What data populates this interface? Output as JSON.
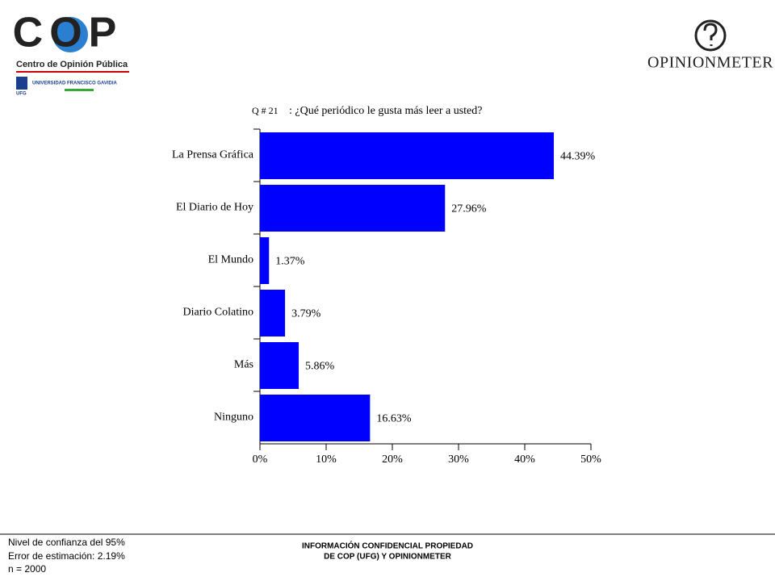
{
  "header": {
    "logo_left": "COP",
    "logo_left_caption": "Centro de Opinión Pública",
    "university": "UNIVERSIDAD FRANCISCO GAVIDIA",
    "university_short": "UFG",
    "logo_right": "OPINIONMETER"
  },
  "chart_data": {
    "type": "bar",
    "orientation": "horizontal",
    "question_number": "Q # 21",
    "title": ": ¿Qué periódico le gusta más leer a usted?",
    "categories": [
      "La Prensa Gráfica",
      "El Diario de Hoy",
      "El Mundo",
      "Diario Colatino",
      "Más",
      "Ninguno"
    ],
    "values": [
      44.39,
      27.96,
      1.37,
      3.79,
      5.86,
      16.63
    ],
    "value_labels": [
      "44.39%",
      "27.96%",
      "1.37%",
      "3.79%",
      "5.86%",
      "16.63%"
    ],
    "color": "#0000ff",
    "xlim": [
      0,
      50
    ],
    "xticks": [
      {
        "value": 0,
        "label": "0%"
      },
      {
        "value": 10,
        "label": "10%"
      },
      {
        "value": 20,
        "label": "20%"
      },
      {
        "value": 30,
        "label": "30%"
      },
      {
        "value": 40,
        "label": "40%"
      },
      {
        "value": 50,
        "label": "50%"
      }
    ],
    "grid": false
  },
  "footer": {
    "confidence": "Nivel de confianza del 95%",
    "error": "Error de estimación: 2.19%",
    "n": "n = 2000",
    "notice_line1": "INFORMACIÓN CONFIDENCIAL PROPIEDAD",
    "notice_line2": "DE COP (UFG) Y OPINIONMETER"
  }
}
